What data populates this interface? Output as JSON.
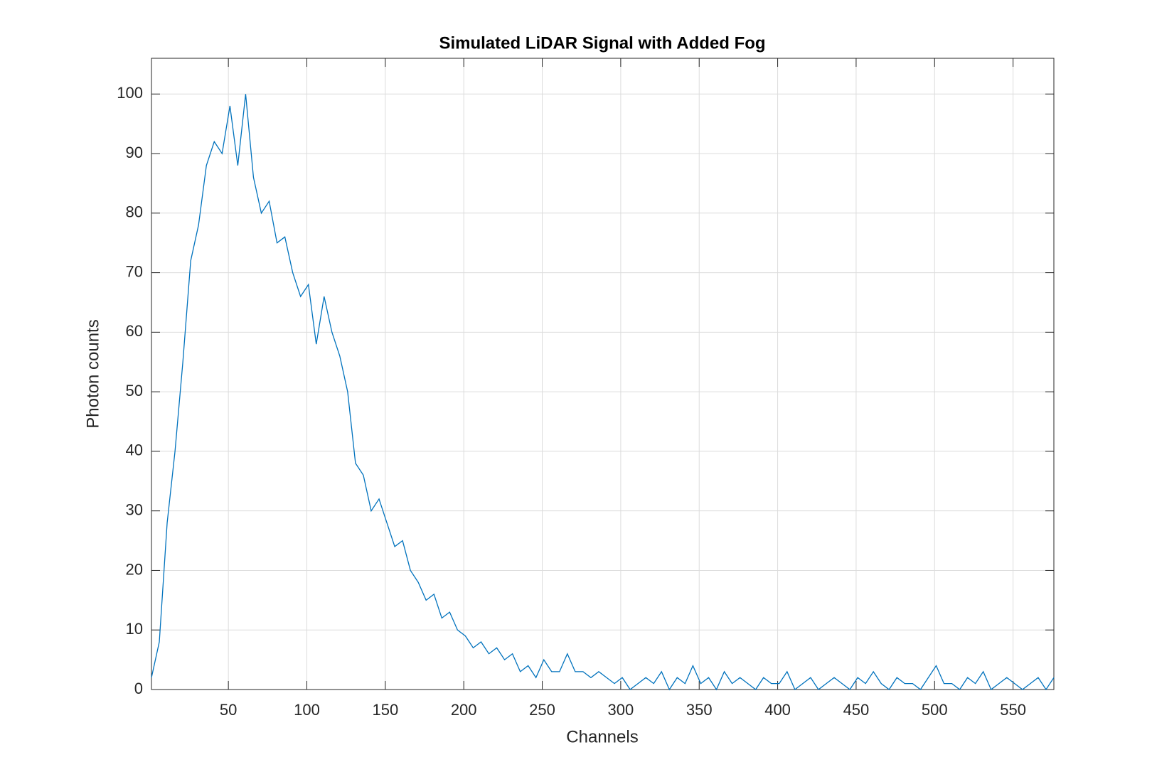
{
  "chart_data": {
    "type": "line",
    "title": "Simulated LiDAR Signal with Added Fog",
    "x_label": "Channels",
    "y_label": "Photon counts",
    "x": [
      1,
      6,
      11,
      16,
      21,
      26,
      31,
      36,
      41,
      46,
      51,
      56,
      61,
      66,
      71,
      76,
      81,
      86,
      91,
      96,
      101,
      106,
      111,
      116,
      121,
      126,
      131,
      136,
      141,
      146,
      151,
      156,
      161,
      166,
      171,
      176,
      181,
      186,
      191,
      196,
      201,
      206,
      211,
      216,
      221,
      226,
      231,
      236,
      241,
      246,
      251,
      256,
      261,
      266,
      271,
      276,
      281,
      286,
      291,
      296,
      301,
      306,
      311,
      316,
      321,
      326,
      331,
      336,
      341,
      346,
      351,
      356,
      361,
      366,
      371,
      376,
      381,
      386,
      391,
      396,
      401,
      406,
      411,
      416,
      421,
      426,
      431,
      436,
      441,
      446,
      451,
      456,
      461,
      466,
      471,
      476,
      481,
      486,
      491,
      496,
      501,
      506,
      511,
      516,
      521,
      526,
      531,
      536,
      541,
      546,
      551,
      556,
      561,
      566,
      571,
      576
    ],
    "series": [
      {
        "name": "Photon counts",
        "color": "#0072bd",
        "values": [
          2,
          8,
          28,
          40,
          55,
          72,
          78,
          88,
          92,
          90,
          98,
          88,
          100,
          86,
          80,
          82,
          75,
          76,
          70,
          66,
          68,
          58,
          66,
          60,
          56,
          50,
          38,
          36,
          30,
          32,
          28,
          24,
          25,
          20,
          18,
          15,
          16,
          12,
          13,
          10,
          9,
          7,
          8,
          6,
          7,
          5,
          6,
          3,
          4,
          2,
          5,
          3,
          3,
          6,
          3,
          3,
          2,
          3,
          2,
          1,
          2,
          0,
          1,
          2,
          1,
          3,
          0,
          2,
          1,
          4,
          1,
          2,
          0,
          3,
          1,
          2,
          1,
          0,
          2,
          1,
          1,
          3,
          0,
          1,
          2,
          0,
          1,
          2,
          1,
          0,
          2,
          1,
          3,
          1,
          0,
          2,
          1,
          1,
          0,
          2,
          4,
          1,
          1,
          0,
          2,
          1,
          3,
          0,
          1,
          2,
          1,
          0,
          1,
          2,
          0,
          2
        ]
      }
    ],
    "xlim": [
      1,
      576
    ],
    "ylim": [
      0,
      106
    ],
    "xticks": [
      50,
      100,
      150,
      200,
      250,
      300,
      350,
      400,
      450,
      500,
      550
    ],
    "yticks": [
      0,
      10,
      20,
      30,
      40,
      50,
      60,
      70,
      80,
      90,
      100
    ],
    "grid": true
  }
}
